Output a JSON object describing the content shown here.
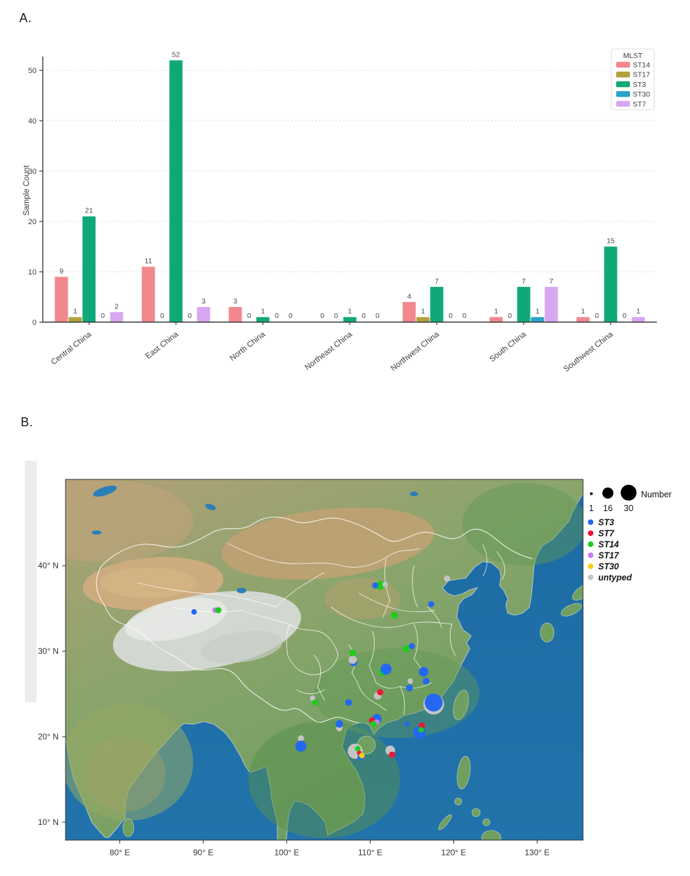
{
  "page": {
    "panel_a_label": "A.",
    "panel_b_label": "B."
  },
  "chart_data": [
    {
      "id": "mlst-by-region-bar",
      "type": "bar",
      "title": "",
      "xlabel": "",
      "ylabel": "Sample Count",
      "ylim": [
        0,
        55
      ],
      "yticks": [
        0,
        10,
        20,
        30,
        40,
        50
      ],
      "grid": true,
      "bar_labels": true,
      "legend_title": "MLST",
      "legend_position": "top-right",
      "categories": [
        "Central China",
        "East China",
        "North China",
        "Northeast China",
        "Northwest China",
        "South China",
        "Southwest China"
      ],
      "series": [
        {
          "name": "ST14",
          "color": "#f2878e",
          "values": [
            9,
            11,
            3,
            0,
            4,
            1,
            1
          ]
        },
        {
          "name": "ST17",
          "color": "#b3a23c",
          "values": [
            1,
            0,
            0,
            0,
            1,
            0,
            0
          ]
        },
        {
          "name": "ST3",
          "color": "#10a878",
          "values": [
            21,
            52,
            1,
            1,
            7,
            7,
            15
          ]
        },
        {
          "name": "ST30",
          "color": "#29a3c6",
          "values": [
            0,
            0,
            0,
            0,
            0,
            1,
            0
          ]
        },
        {
          "name": "ST7",
          "color": "#d9a6f2",
          "values": [
            2,
            3,
            0,
            0,
            0,
            7,
            1
          ]
        }
      ]
    },
    {
      "id": "china-map-bubbles",
      "type": "scatter",
      "projection": "lonlat",
      "extent": {
        "lon_min": 73.5,
        "lon_max": 135.5,
        "lat_min": 7.9,
        "lat_max": 50.1
      },
      "xticks": [
        {
          "lon": 80,
          "label": "80° E"
        },
        {
          "lon": 90,
          "label": "90° E"
        },
        {
          "lon": 100,
          "label": "100° E"
        },
        {
          "lon": 110,
          "label": "110° E"
        },
        {
          "lon": 120,
          "label": "120° E"
        },
        {
          "lon": 130,
          "label": "130° E"
        }
      ],
      "yticks": [
        {
          "lat": 10,
          "label": "10° N"
        },
        {
          "lat": 20,
          "label": "20° N"
        },
        {
          "lat": 30,
          "label": "30° N"
        },
        {
          "lat": 40,
          "label": "40° N"
        }
      ],
      "size_legend": {
        "title": "Number",
        "items": [
          {
            "value": "1",
            "r": 2
          },
          {
            "value": "16",
            "r": 8
          },
          {
            "value": "30",
            "r": 11.5
          }
        ]
      },
      "color_legend": [
        {
          "label": "ST3",
          "color": "#2468f2"
        },
        {
          "label": "ST7",
          "color": "#f01535"
        },
        {
          "label": "ST14",
          "color": "#1ecb1e"
        },
        {
          "label": "ST17",
          "color": "#c47ef5"
        },
        {
          "label": "ST30",
          "color": "#f3d117"
        },
        {
          "label": "untyped",
          "color": "#c4c4c4"
        }
      ],
      "palette": {
        "ST3": "#2468f2",
        "ST7": "#f01535",
        "ST14": "#1ecb1e",
        "ST17": "#c47ef5",
        "ST30": "#f3d117",
        "untyped": "#c4c4c4"
      },
      "bubbles": [
        {
          "lon": 88.9,
          "lat": 34.6,
          "st": "ST3",
          "r": 4
        },
        {
          "lon": 91.4,
          "lat": 34.8,
          "st": "ST17",
          "r": 4
        },
        {
          "lon": 91.8,
          "lat": 34.8,
          "st": "ST14",
          "r": 4.5
        },
        {
          "lon": 111.2,
          "lat": 37.7,
          "st": "ST14",
          "r": 6.5
        },
        {
          "lon": 111.8,
          "lat": 37.8,
          "st": "untyped",
          "r": 4
        },
        {
          "lon": 110.6,
          "lat": 37.7,
          "st": "ST3",
          "r": 4.5
        },
        {
          "lon": 119.2,
          "lat": 38.5,
          "st": "untyped",
          "r": 4.5
        },
        {
          "lon": 117.3,
          "lat": 35.5,
          "st": "ST3",
          "r": 4.5
        },
        {
          "lon": 112.9,
          "lat": 34.2,
          "st": "ST14",
          "r": 5
        },
        {
          "lon": 114.3,
          "lat": 30.3,
          "st": "ST14",
          "r": 5
        },
        {
          "lon": 115.0,
          "lat": 30.6,
          "st": "ST3",
          "r": 4.5
        },
        {
          "lon": 108.0,
          "lat": 28.7,
          "st": "ST3",
          "r": 5.5
        },
        {
          "lon": 107.9,
          "lat": 29.0,
          "st": "untyped",
          "r": 6
        },
        {
          "lon": 107.9,
          "lat": 29.8,
          "st": "ST14",
          "r": 5
        },
        {
          "lon": 111.5,
          "lat": 27.6,
          "st": "ST14",
          "r": 6
        },
        {
          "lon": 111.9,
          "lat": 27.9,
          "st": "ST3",
          "r": 8
        },
        {
          "lon": 116.4,
          "lat": 27.6,
          "st": "ST3",
          "r": 7
        },
        {
          "lon": 116.7,
          "lat": 26.5,
          "st": "ST3",
          "r": 5
        },
        {
          "lon": 114.8,
          "lat": 26.5,
          "st": "untyped",
          "r": 4
        },
        {
          "lon": 114.7,
          "lat": 25.7,
          "st": "ST3",
          "r": 5
        },
        {
          "lon": 117.6,
          "lat": 23.8,
          "st": "untyped",
          "r": 15
        },
        {
          "lon": 117.6,
          "lat": 24.0,
          "st": "ST3",
          "r": 13
        },
        {
          "lon": 110.9,
          "lat": 24.8,
          "st": "untyped",
          "r": 5.5
        },
        {
          "lon": 111.2,
          "lat": 25.2,
          "st": "ST7",
          "r": 4.5
        },
        {
          "lon": 103.1,
          "lat": 24.5,
          "st": "untyped",
          "r": 4
        },
        {
          "lon": 103.4,
          "lat": 24.0,
          "st": "ST14",
          "r": 4.5
        },
        {
          "lon": 107.4,
          "lat": 24.0,
          "st": "ST3",
          "r": 5
        },
        {
          "lon": 106.3,
          "lat": 21.0,
          "st": "untyped",
          "r": 4.5
        },
        {
          "lon": 106.3,
          "lat": 21.5,
          "st": "ST3",
          "r": 5.5
        },
        {
          "lon": 101.7,
          "lat": 19.8,
          "st": "untyped",
          "r": 4.5
        },
        {
          "lon": 101.7,
          "lat": 18.9,
          "st": "ST3",
          "r": 8
        },
        {
          "lon": 110.8,
          "lat": 22.1,
          "st": "ST3",
          "r": 7
        },
        {
          "lon": 110.2,
          "lat": 21.9,
          "st": "ST7",
          "r": 4.5
        },
        {
          "lon": 110.8,
          "lat": 21.7,
          "st": "ST17",
          "r": 4
        },
        {
          "lon": 110.4,
          "lat": 21.5,
          "st": "ST14",
          "r": 4.5
        },
        {
          "lon": 114.4,
          "lat": 21.5,
          "st": "ST3",
          "r": 3.5
        },
        {
          "lon": 115.9,
          "lat": 20.5,
          "st": "ST3",
          "r": 9
        },
        {
          "lon": 116.2,
          "lat": 21.3,
          "st": "ST7",
          "r": 4.5
        },
        {
          "lon": 116.1,
          "lat": 20.8,
          "st": "ST14",
          "r": 4
        },
        {
          "lon": 108.2,
          "lat": 18.3,
          "st": "untyped",
          "r": 11
        },
        {
          "lon": 108.5,
          "lat": 18.6,
          "st": "ST14",
          "r": 4
        },
        {
          "lon": 108.7,
          "lat": 18.1,
          "st": "ST7",
          "r": 3.5
        },
        {
          "lon": 108.8,
          "lat": 17.6,
          "st": "ST3",
          "r": 4
        },
        {
          "lon": 109.0,
          "lat": 17.8,
          "st": "ST30",
          "r": 4
        },
        {
          "lon": 112.4,
          "lat": 18.4,
          "st": "untyped",
          "r": 7
        },
        {
          "lon": 112.6,
          "lat": 17.9,
          "st": "ST7",
          "r": 4.5
        }
      ]
    }
  ]
}
